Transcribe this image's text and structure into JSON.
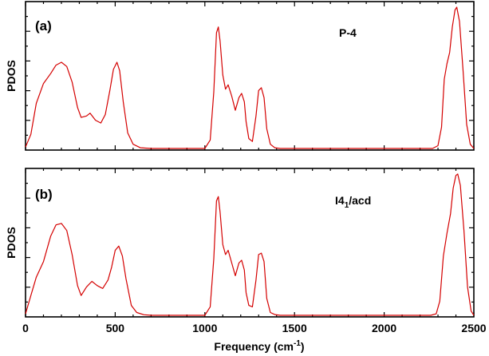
{
  "chart_data": [
    {
      "type": "line",
      "panel_label": "(a)",
      "annotation": "P-4",
      "ylabel": "PDOS",
      "xlim": [
        0,
        2500
      ],
      "ylim": [
        0,
        1
      ],
      "color": "#d40000",
      "series": [
        {
          "x": [
            0,
            30,
            60,
            100,
            140,
            170,
            200,
            230,
            260,
            290,
            310,
            340,
            360,
            390,
            420,
            445,
            470,
            490,
            510,
            525,
            545,
            570,
            600,
            640,
            700,
            1000,
            1030,
            1050,
            1065,
            1075,
            1085,
            1100,
            1115,
            1130,
            1150,
            1170,
            1190,
            1205,
            1220,
            1230,
            1245,
            1265,
            1285,
            1300,
            1315,
            1330,
            1345,
            1365,
            1390,
            1420,
            1500,
            2270,
            2300,
            2320,
            2335,
            2350,
            2365,
            2380,
            2395,
            2405,
            2420,
            2440,
            2460,
            2480,
            2500
          ],
          "y": [
            0.01,
            0.1,
            0.32,
            0.46,
            0.53,
            0.59,
            0.61,
            0.58,
            0.47,
            0.29,
            0.22,
            0.23,
            0.25,
            0.2,
            0.18,
            0.24,
            0.41,
            0.56,
            0.61,
            0.55,
            0.33,
            0.11,
            0.03,
            0.005,
            0.0,
            0.0,
            0.06,
            0.4,
            0.82,
            0.86,
            0.76,
            0.52,
            0.42,
            0.45,
            0.37,
            0.27,
            0.36,
            0.39,
            0.33,
            0.19,
            0.07,
            0.05,
            0.23,
            0.41,
            0.43,
            0.36,
            0.14,
            0.03,
            0.005,
            0.0,
            0.0,
            0.0,
            0.02,
            0.15,
            0.49,
            0.6,
            0.68,
            0.86,
            0.98,
            1.0,
            0.9,
            0.55,
            0.17,
            0.03,
            0.0
          ]
        }
      ]
    },
    {
      "type": "line",
      "panel_label": "(b)",
      "annotation": "I4",
      "annotation_sub": "1",
      "annotation_suffix": "/acd",
      "ylabel": "PDOS",
      "xlabel": "Frequency (cm",
      "xlabel_sup": "-1",
      "xlabel_suffix": ")",
      "xticks": [
        "0",
        "500",
        "1000",
        "1500",
        "2000",
        "2500"
      ],
      "xlim": [
        0,
        2500
      ],
      "ylim": [
        0,
        1
      ],
      "color": "#d40000",
      "series": [
        {
          "x": [
            0,
            30,
            60,
            100,
            140,
            170,
            200,
            230,
            260,
            290,
            310,
            340,
            370,
            400,
            430,
            460,
            480,
            500,
            520,
            540,
            560,
            590,
            620,
            660,
            700,
            1000,
            1030,
            1050,
            1065,
            1075,
            1085,
            1100,
            1115,
            1130,
            1150,
            1170,
            1190,
            1205,
            1220,
            1230,
            1245,
            1265,
            1285,
            1300,
            1315,
            1330,
            1345,
            1365,
            1390,
            1420,
            1500,
            2260,
            2290,
            2310,
            2330,
            2350,
            2370,
            2385,
            2400,
            2410,
            2425,
            2445,
            2465,
            2485,
            2500
          ],
          "y": [
            0.01,
            0.14,
            0.27,
            0.38,
            0.56,
            0.64,
            0.65,
            0.6,
            0.43,
            0.21,
            0.14,
            0.2,
            0.24,
            0.21,
            0.19,
            0.25,
            0.34,
            0.46,
            0.49,
            0.42,
            0.26,
            0.07,
            0.02,
            0.004,
            0.0,
            0.0,
            0.06,
            0.4,
            0.81,
            0.84,
            0.73,
            0.5,
            0.43,
            0.46,
            0.37,
            0.28,
            0.37,
            0.39,
            0.32,
            0.16,
            0.07,
            0.06,
            0.25,
            0.43,
            0.44,
            0.38,
            0.12,
            0.02,
            0.005,
            0.0,
            0.0,
            0.0,
            0.01,
            0.1,
            0.42,
            0.58,
            0.72,
            0.9,
            0.99,
            1.0,
            0.92,
            0.6,
            0.2,
            0.03,
            0.0
          ]
        }
      ]
    }
  ]
}
